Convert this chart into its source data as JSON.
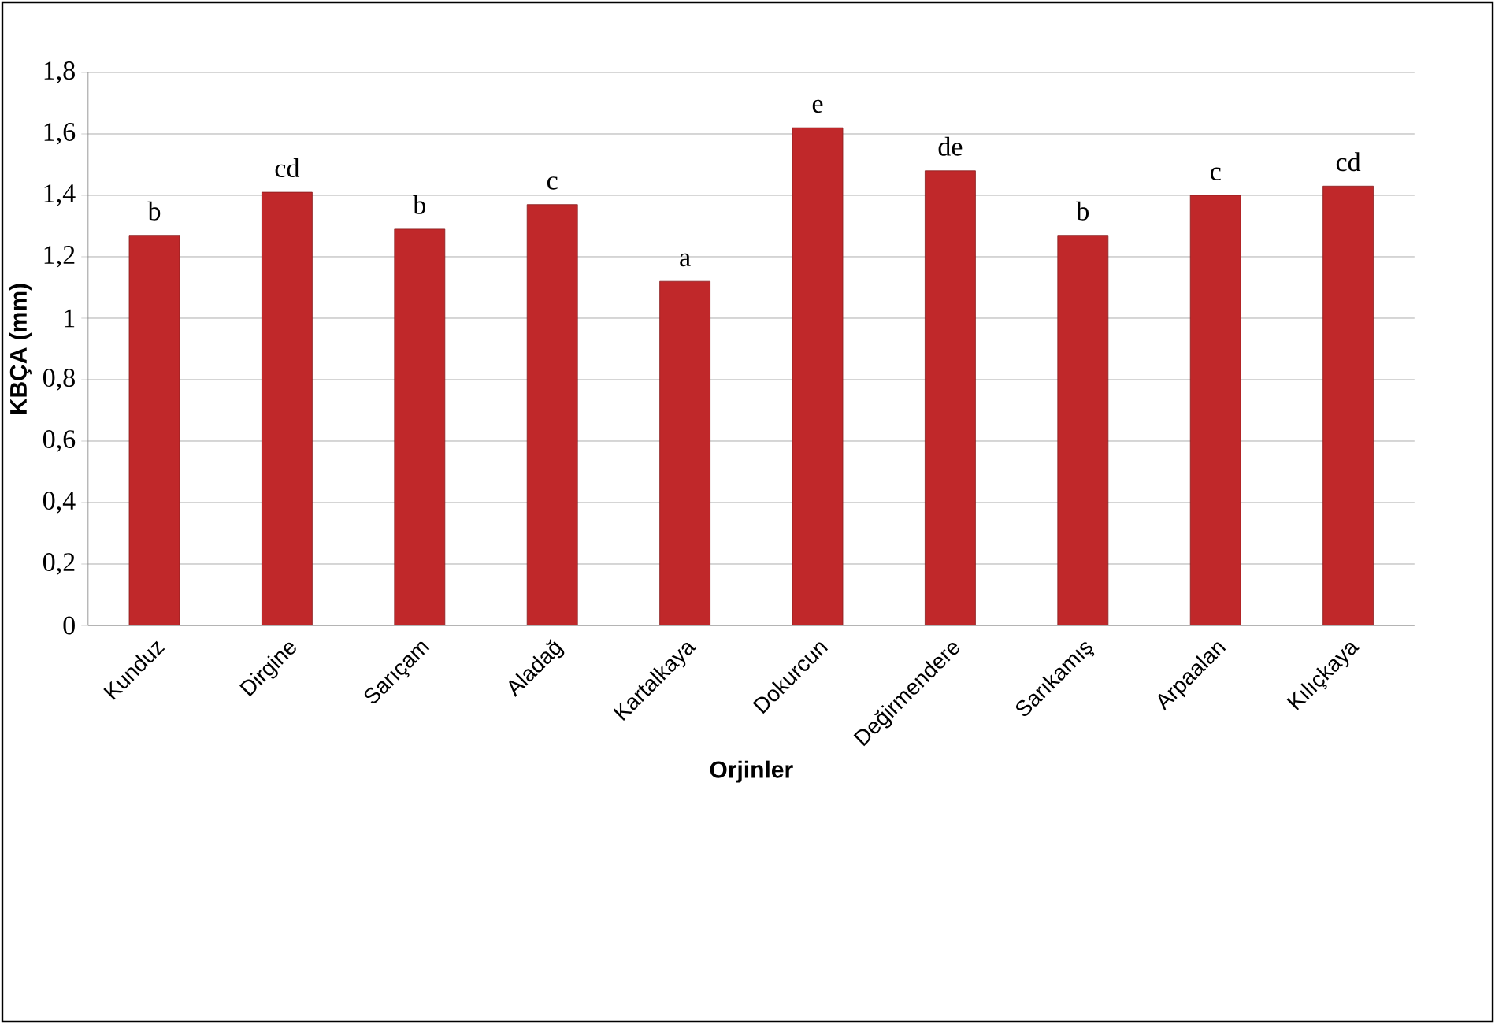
{
  "chart_data": {
    "type": "bar",
    "xlabel": "Orjinler",
    "ylabel": "KBÇA (mm)",
    "categories": [
      "Kunduz",
      "Dirgine",
      "Sarıçam",
      "Aladağ",
      "Kartalkaya",
      "Dokurcun",
      "Değirmendere",
      "Sarıkamış",
      "Arpaalan",
      "Kılıçkaya"
    ],
    "values": [
      1.27,
      1.41,
      1.29,
      1.37,
      1.12,
      1.62,
      1.48,
      1.27,
      1.4,
      1.43
    ],
    "color": "#c0282a",
    "ylim": [
      0,
      1.8
    ],
    "yticks": [
      {
        "value": 0,
        "label": "0"
      },
      {
        "value": 0.2,
        "label": "0,2"
      },
      {
        "value": 0.4,
        "label": "0,4"
      },
      {
        "value": 0.6,
        "label": "0,6"
      },
      {
        "value": 0.8,
        "label": "0,8"
      },
      {
        "value": 1,
        "label": "1"
      },
      {
        "value": 1.2,
        "label": "1,2"
      },
      {
        "value": 1.4,
        "label": "1,4"
      },
      {
        "value": 1.6,
        "label": "1,6"
      },
      {
        "value": 1.8,
        "label": "1,8"
      }
    ],
    "grid": "y",
    "annotations": [
      "b",
      "cd",
      "b",
      "c",
      "a",
      "e",
      "de",
      "b",
      "c",
      "cd"
    ]
  }
}
